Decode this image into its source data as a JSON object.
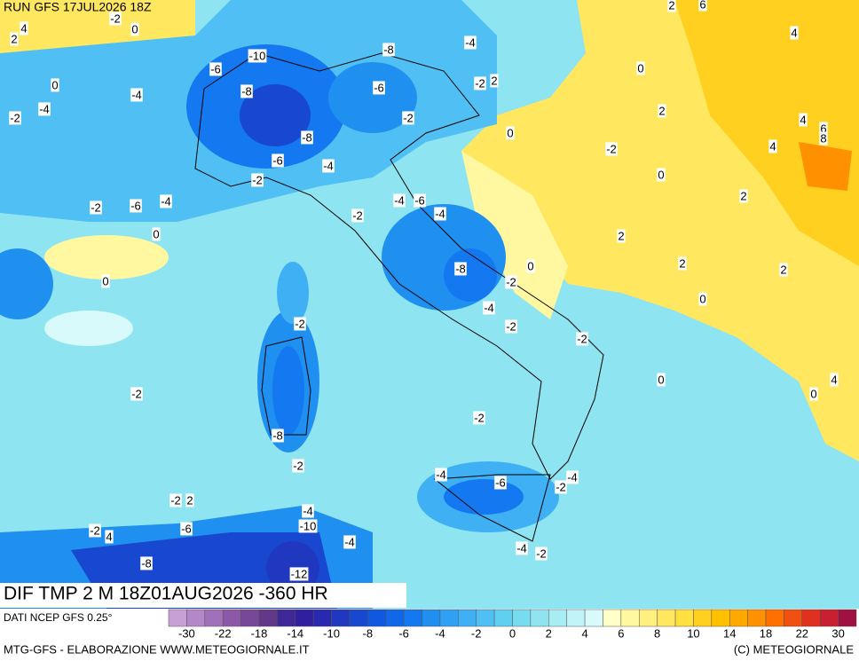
{
  "header": {
    "run": "RUN GFS 17JUL2026 18Z"
  },
  "map": {
    "contour_labels": [
      "2",
      "4",
      "-2",
      "0",
      "2",
      "6",
      "-10",
      "-8",
      "-4",
      "-6",
      "0",
      "4",
      "0",
      "-4",
      "-8",
      "-6",
      "-2",
      "2",
      "-2",
      "-4",
      "2",
      "-2",
      "0",
      "4",
      "6",
      "8",
      "4",
      "-8",
      "-2",
      "-6",
      "-4",
      "0",
      "-2",
      "2",
      "-2",
      "-6",
      "-4",
      "-4",
      "-6",
      "-4",
      "-2",
      "0",
      "2",
      "2",
      "0",
      "-8",
      "2",
      "0",
      "-2",
      "0",
      "-4",
      "-2",
      "-2",
      "-2",
      "0",
      "4",
      "-2",
      "0",
      "-2",
      "-8",
      "-2",
      "-4",
      "-6",
      "-4",
      "-2",
      "-2",
      "2",
      "-4",
      "-10",
      "-2",
      "4",
      "-6",
      "-4",
      "-8",
      "-4",
      "-2",
      "-12"
    ]
  },
  "title": "DIF TMP 2 M 18Z01AUG2026 -360 HR",
  "source": "DATI NCEP GFS 0.25°",
  "legend": {
    "labels": [
      "-30",
      "-22",
      "-18",
      "-14",
      "-10",
      "-8",
      "-6",
      "-4",
      "-2",
      "0",
      "2",
      "4",
      "6",
      "8",
      "10",
      "14",
      "18",
      "22",
      "30"
    ],
    "colors": [
      "#c8a0d8",
      "#b488c8",
      "#a070b8",
      "#8c58a8",
      "#784898",
      "#643888",
      "#402898",
      "#3020a0",
      "#2828b0",
      "#2038c0",
      "#1848d0",
      "#1058e0",
      "#1068e8",
      "#1478f0",
      "#2090f0",
      "#30a0f4",
      "#40b0f4",
      "#50c0f4",
      "#60d0f0",
      "#78dcf0",
      "#90e4f0",
      "#a8ecf4",
      "#c0f4f8",
      "#d8fafa",
      "#ffffc8",
      "#fff8a0",
      "#fff080",
      "#ffe860",
      "#ffe040",
      "#ffd020",
      "#ffc000",
      "#ffa800",
      "#ff9000",
      "#ff7000",
      "#f05010",
      "#e03020",
      "#c82030",
      "#a01040"
    ]
  },
  "footer": {
    "left": "MTG-GFS - ELABORAZIONE WWW.METEOGIORNALE.IT",
    "right": "(C) METEOGIORNALE"
  }
}
